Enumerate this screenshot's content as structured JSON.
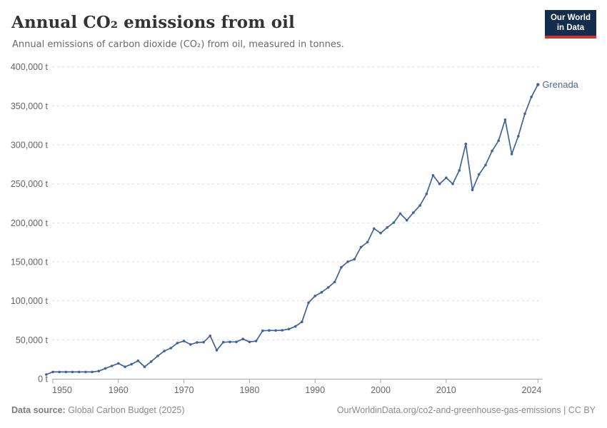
{
  "header": {
    "title": "Annual CO₂ emissions from oil",
    "subtitle": "Annual emissions of carbon dioxide (CO₂) from oil, measured in tonnes.",
    "logo": {
      "line1": "Our World",
      "line2": "in Data"
    }
  },
  "chart_data": {
    "type": "line",
    "title": "Annual CO₂ emissions from oil",
    "unit": "t",
    "series_label": "Grenada",
    "x": [
      1949,
      1950,
      1951,
      1952,
      1953,
      1954,
      1955,
      1956,
      1957,
      1958,
      1959,
      1960,
      1961,
      1962,
      1963,
      1964,
      1965,
      1966,
      1967,
      1968,
      1969,
      1970,
      1971,
      1972,
      1973,
      1974,
      1975,
      1976,
      1977,
      1978,
      1979,
      1980,
      1981,
      1982,
      1983,
      1984,
      1985,
      1986,
      1987,
      1988,
      1989,
      1990,
      1991,
      1992,
      1993,
      1994,
      1995,
      1996,
      1997,
      1998,
      1999,
      2000,
      2001,
      2002,
      2003,
      2004,
      2005,
      2006,
      2007,
      2008,
      2009,
      2010,
      2011,
      2012,
      2013,
      2014,
      2015,
      2016,
      2017,
      2018,
      2019,
      2020,
      2021,
      2022,
      2023,
      2024
    ],
    "values": [
      5500,
      8800,
      8800,
      8800,
      8800,
      8800,
      8800,
      8800,
      9900,
      13200,
      16500,
      19800,
      15400,
      18700,
      23100,
      15400,
      22000,
      29300,
      35600,
      39300,
      45800,
      48400,
      44000,
      46600,
      46900,
      55100,
      36700,
      46900,
      47300,
      47300,
      51000,
      47300,
      48400,
      61600,
      62000,
      61900,
      62200,
      63800,
      67100,
      73000,
      97500,
      106200,
      111000,
      117100,
      124100,
      143000,
      150100,
      153300,
      168900,
      175200,
      192600,
      186800,
      194000,
      200200,
      211900,
      203300,
      213000,
      222200,
      237100,
      260900,
      249900,
      257800,
      249900,
      267200,
      301200,
      242100,
      262000,
      274100,
      292200,
      305400,
      332200,
      288200,
      311100,
      339900,
      361400,
      377300
    ],
    "ylim": [
      0,
      400000
    ],
    "yticks": [
      0,
      50000,
      100000,
      150000,
      200000,
      250000,
      300000,
      350000,
      400000
    ],
    "ytick_suffix": " t",
    "xticks": [
      1950,
      1960,
      1970,
      1980,
      1990,
      2000,
      2010,
      2024
    ],
    "grid": "horizontal-dashed",
    "legend_position": "end-of-line-label",
    "colors": {
      "line": "#3d649d",
      "entity_label": "#4c669b",
      "grid": "#dcdcdc",
      "axis": "#a5a5a5",
      "tick_label": "#666666"
    }
  },
  "footer": {
    "datasource_label": "Data source:",
    "datasource_value": " Global Carbon Budget (2025)",
    "credit": "OurWorldinData.org/co2-and-greenhouse-gas-emissions | CC BY"
  }
}
